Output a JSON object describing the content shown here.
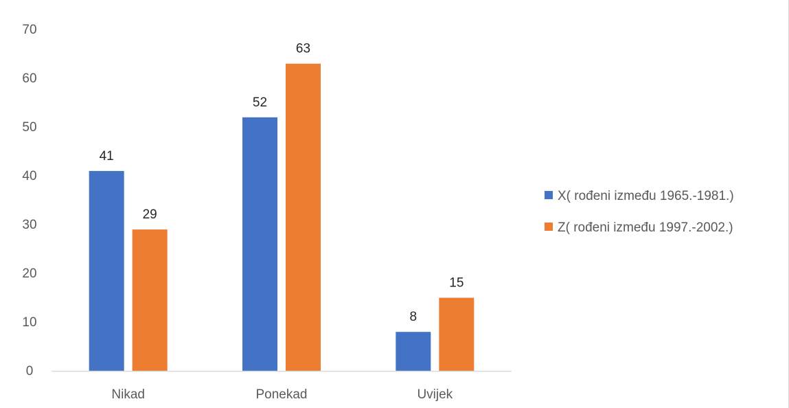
{
  "chart_data": {
    "type": "bar",
    "categories": [
      "Nikad",
      "Ponekad",
      "Uvijek"
    ],
    "series": [
      {
        "name": "X( rođeni između 1965.-1981.)",
        "values": [
          41,
          52,
          8
        ],
        "color": "#4472C4"
      },
      {
        "name": "Z( rođeni između 1997.-2002.)",
        "values": [
          29,
          63,
          15
        ],
        "color": "#ED7D31"
      }
    ],
    "title": "",
    "xlabel": "",
    "ylabel": "",
    "ylim": [
      0,
      70
    ],
    "yticks": [
      0,
      10,
      20,
      30,
      40,
      50,
      60,
      70
    ],
    "grid": false,
    "legend_position": "right",
    "data_labels": true
  }
}
